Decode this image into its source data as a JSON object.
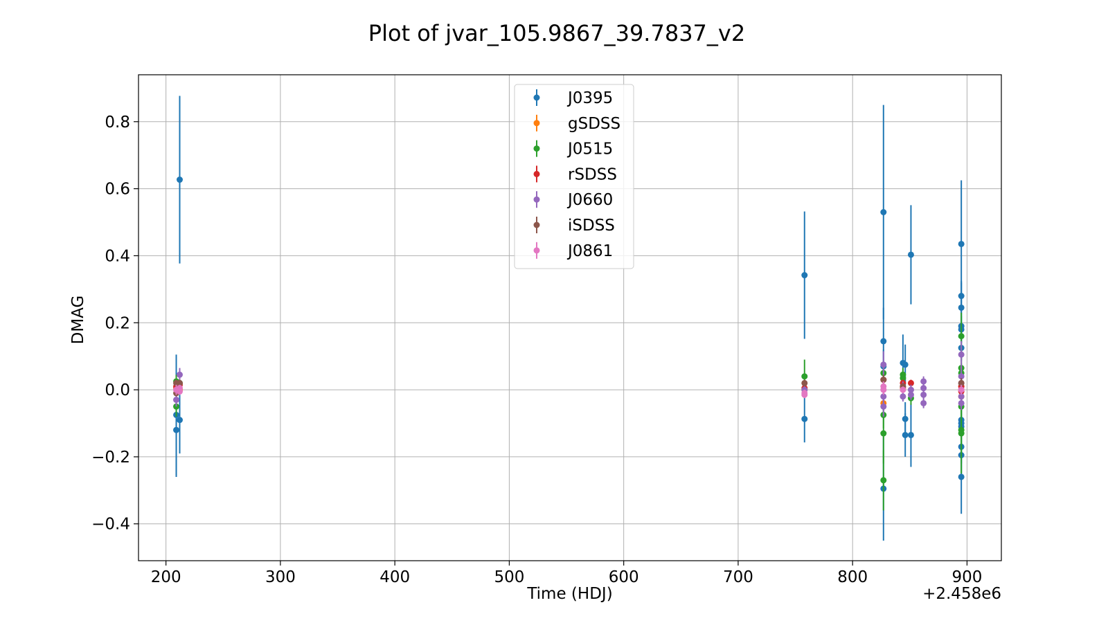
{
  "chart_data": {
    "type": "scatter",
    "title": "Plot of jvar_105.9867_39.7837_v2",
    "xlabel": "Time (HDJ)",
    "ylabel": "DMAG",
    "x_offset_label": "+2.458e6",
    "xlim": [
      176,
      930
    ],
    "ylim": [
      -0.51,
      0.94
    ],
    "xticks": [
      200,
      300,
      400,
      500,
      600,
      700,
      800,
      900
    ],
    "xtick_labels": [
      "200",
      "300",
      "400",
      "500",
      "600",
      "700",
      "800",
      "900"
    ],
    "yticks": [
      -0.4,
      -0.2,
      0.0,
      0.2,
      0.4,
      0.6,
      0.8
    ],
    "ytick_labels": [
      "−0.4",
      "−0.2",
      "0.0",
      "0.2",
      "0.4",
      "0.6",
      "0.8"
    ],
    "grid": true,
    "legend_position": "top-center",
    "error_bars": true,
    "series": [
      {
        "name": "J0395",
        "color": "#1f77b4",
        "points": [
          {
            "x": 209,
            "y": -0.12,
            "err": 0.14
          },
          {
            "x": 209,
            "y": -0.075,
            "err": 0.18
          },
          {
            "x": 212,
            "y": 0.627,
            "err": 0.25
          },
          {
            "x": 212,
            "y": -0.09,
            "err": 0.1
          },
          {
            "x": 758,
            "y": 0.342,
            "err": 0.19
          },
          {
            "x": 758,
            "y": -0.087,
            "err": 0.07
          },
          {
            "x": 827,
            "y": 0.53,
            "err": 0.32
          },
          {
            "x": 827,
            "y": 0.145,
            "err": 0.1
          },
          {
            "x": 827,
            "y": -0.295,
            "err": 0.155
          },
          {
            "x": 827,
            "y": 0.07,
            "err": 0.05
          },
          {
            "x": 844,
            "y": 0.08,
            "err": 0.085
          },
          {
            "x": 846,
            "y": 0.075,
            "err": 0.06
          },
          {
            "x": 846,
            "y": -0.087,
            "err": 0.05
          },
          {
            "x": 846,
            "y": -0.135,
            "err": 0.065
          },
          {
            "x": 851,
            "y": 0.403,
            "err": 0.148
          },
          {
            "x": 851,
            "y": -0.135,
            "err": 0.095
          },
          {
            "x": 895,
            "y": 0.435,
            "err": 0.19
          },
          {
            "x": 895,
            "y": 0.28,
            "err": 0.045
          },
          {
            "x": 895,
            "y": 0.245,
            "err": 0.075
          },
          {
            "x": 895,
            "y": 0.19,
            "err": 0.05
          },
          {
            "x": 895,
            "y": 0.18,
            "err": 0.04
          },
          {
            "x": 895,
            "y": 0.125,
            "err": 0.04
          },
          {
            "x": 895,
            "y": -0.09,
            "err": 0.04
          },
          {
            "x": 895,
            "y": -0.1,
            "err": 0.04
          },
          {
            "x": 895,
            "y": -0.11,
            "err": 0.04
          },
          {
            "x": 895,
            "y": -0.17,
            "err": 0.05
          },
          {
            "x": 895,
            "y": -0.195,
            "err": 0.06
          },
          {
            "x": 895,
            "y": -0.26,
            "err": 0.11
          }
        ]
      },
      {
        "name": "gSDSS",
        "color": "#ff7f0e",
        "points": [
          {
            "x": 209,
            "y": 0.005,
            "err": 0.015
          },
          {
            "x": 212,
            "y": 0.0,
            "err": 0.01
          },
          {
            "x": 758,
            "y": 0.0,
            "err": 0.01
          },
          {
            "x": 827,
            "y": -0.04,
            "err": 0.02
          },
          {
            "x": 844,
            "y": 0.005,
            "err": 0.01
          },
          {
            "x": 895,
            "y": 0.01,
            "err": 0.015
          },
          {
            "x": 895,
            "y": -0.02,
            "err": 0.015
          }
        ]
      },
      {
        "name": "J0515",
        "color": "#2ca02c",
        "points": [
          {
            "x": 209,
            "y": 0.025,
            "err": 0.02
          },
          {
            "x": 209,
            "y": -0.05,
            "err": 0.03
          },
          {
            "x": 212,
            "y": 0.02,
            "err": 0.02
          },
          {
            "x": 758,
            "y": 0.04,
            "err": 0.05
          },
          {
            "x": 827,
            "y": 0.05,
            "err": 0.03
          },
          {
            "x": 827,
            "y": -0.075,
            "err": 0.04
          },
          {
            "x": 827,
            "y": -0.13,
            "err": 0.09
          },
          {
            "x": 827,
            "y": -0.27,
            "err": 0.09
          },
          {
            "x": 844,
            "y": 0.045,
            "err": 0.02
          },
          {
            "x": 844,
            "y": 0.035,
            "err": 0.02
          },
          {
            "x": 851,
            "y": -0.025,
            "err": 0.02
          },
          {
            "x": 895,
            "y": 0.16,
            "err": 0.07
          },
          {
            "x": 895,
            "y": 0.065,
            "err": 0.04
          },
          {
            "x": 895,
            "y": 0.05,
            "err": 0.03
          },
          {
            "x": 895,
            "y": -0.05,
            "err": 0.03
          },
          {
            "x": 895,
            "y": -0.12,
            "err": 0.08
          },
          {
            "x": 895,
            "y": -0.13,
            "err": 0.12
          }
        ]
      },
      {
        "name": "rSDSS",
        "color": "#d62728",
        "points": [
          {
            "x": 209,
            "y": 0.01,
            "err": 0.01
          },
          {
            "x": 212,
            "y": 0.015,
            "err": 0.01
          },
          {
            "x": 758,
            "y": 0.005,
            "err": 0.01
          },
          {
            "x": 827,
            "y": 0.03,
            "err": 0.01
          },
          {
            "x": 844,
            "y": 0.02,
            "err": 0.01
          },
          {
            "x": 851,
            "y": 0.02,
            "err": 0.01
          },
          {
            "x": 895,
            "y": 0.01,
            "err": 0.01
          },
          {
            "x": 895,
            "y": -0.005,
            "err": 0.01
          }
        ]
      },
      {
        "name": "J0660",
        "color": "#9467bd",
        "points": [
          {
            "x": 209,
            "y": -0.03,
            "err": 0.02
          },
          {
            "x": 212,
            "y": 0.045,
            "err": 0.02
          },
          {
            "x": 758,
            "y": 0.0,
            "err": 0.015
          },
          {
            "x": 827,
            "y": 0.075,
            "err": 0.04
          },
          {
            "x": 827,
            "y": -0.02,
            "err": 0.03
          },
          {
            "x": 827,
            "y": -0.05,
            "err": 0.03
          },
          {
            "x": 844,
            "y": 0.01,
            "err": 0.015
          },
          {
            "x": 844,
            "y": -0.02,
            "err": 0.015
          },
          {
            "x": 851,
            "y": 0.0,
            "err": 0.015
          },
          {
            "x": 851,
            "y": -0.015,
            "err": 0.015
          },
          {
            "x": 862,
            "y": 0.025,
            "err": 0.015
          },
          {
            "x": 862,
            "y": 0.005,
            "err": 0.015
          },
          {
            "x": 862,
            "y": -0.015,
            "err": 0.015
          },
          {
            "x": 862,
            "y": -0.04,
            "err": 0.015
          },
          {
            "x": 895,
            "y": 0.105,
            "err": 0.04
          },
          {
            "x": 895,
            "y": 0.04,
            "err": 0.03
          },
          {
            "x": 895,
            "y": 0.02,
            "err": 0.02
          },
          {
            "x": 895,
            "y": 0.0,
            "err": 0.02
          },
          {
            "x": 895,
            "y": -0.02,
            "err": 0.02
          },
          {
            "x": 895,
            "y": -0.04,
            "err": 0.02
          }
        ]
      },
      {
        "name": "iSDSS",
        "color": "#8c564b",
        "points": [
          {
            "x": 209,
            "y": 0.02,
            "err": 0.01
          },
          {
            "x": 209,
            "y": -0.01,
            "err": 0.01
          },
          {
            "x": 212,
            "y": 0.02,
            "err": 0.01
          },
          {
            "x": 758,
            "y": 0.02,
            "err": 0.01
          },
          {
            "x": 827,
            "y": 0.03,
            "err": 0.015
          },
          {
            "x": 844,
            "y": 0.01,
            "err": 0.01
          },
          {
            "x": 895,
            "y": 0.02,
            "err": 0.015
          }
        ]
      },
      {
        "name": "J0861",
        "color": "#e377c2",
        "points": [
          {
            "x": 209,
            "y": 0.0,
            "err": 0.015
          },
          {
            "x": 212,
            "y": -0.005,
            "err": 0.01
          },
          {
            "x": 212,
            "y": 0.005,
            "err": 0.01
          },
          {
            "x": 758,
            "y": -0.01,
            "err": 0.01
          },
          {
            "x": 758,
            "y": -0.015,
            "err": 0.01
          },
          {
            "x": 827,
            "y": 0.0,
            "err": 0.015
          },
          {
            "x": 827,
            "y": 0.01,
            "err": 0.015
          },
          {
            "x": 844,
            "y": 0.0,
            "err": 0.01
          },
          {
            "x": 895,
            "y": 0.0,
            "err": 0.015
          }
        ]
      }
    ]
  }
}
